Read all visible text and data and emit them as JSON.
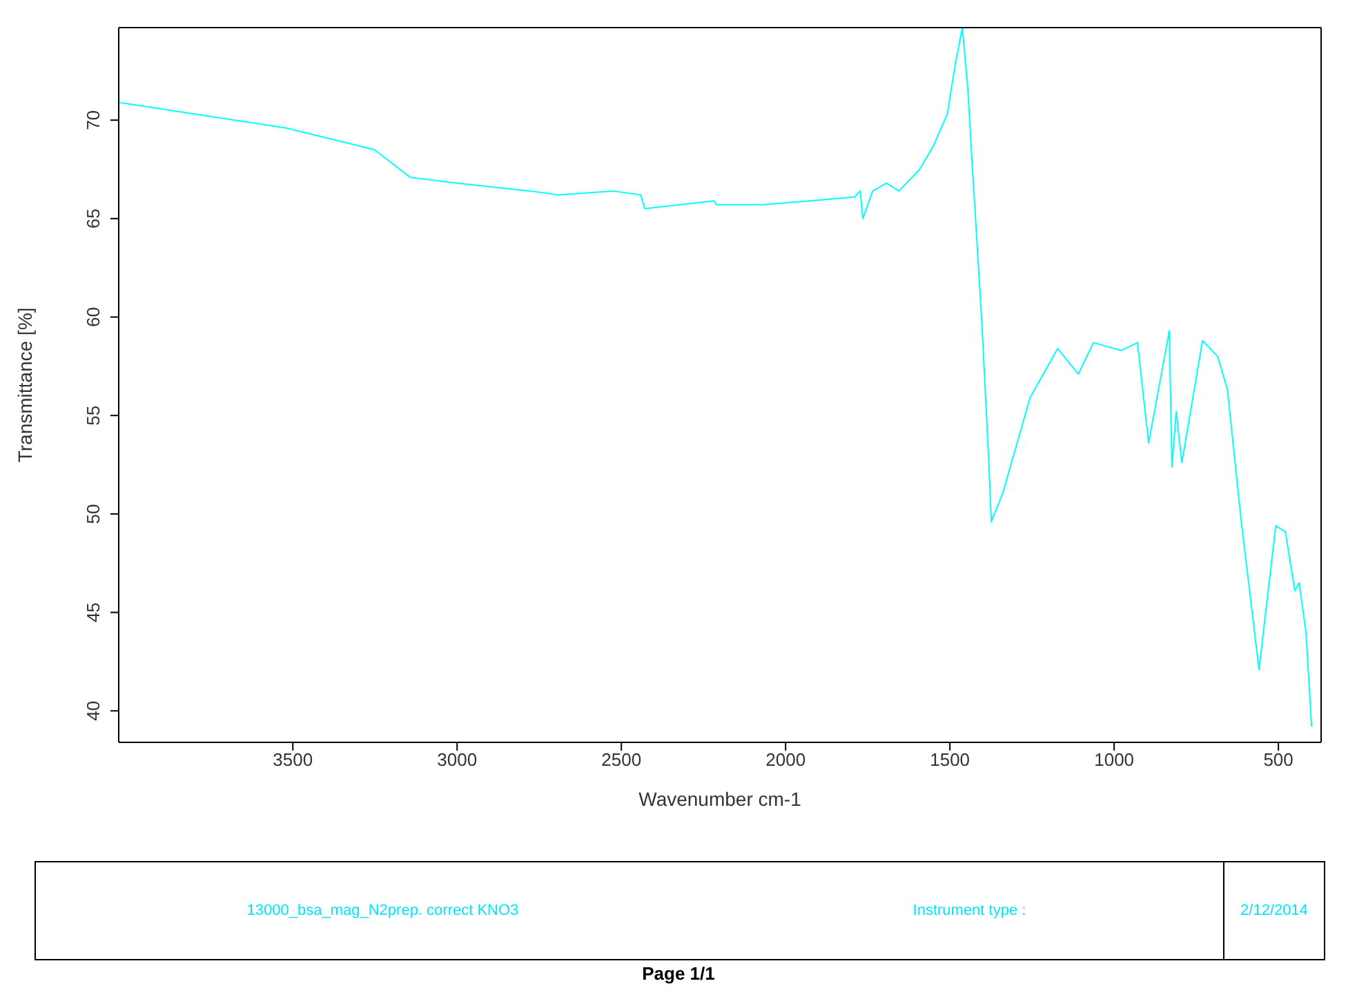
{
  "chart_data": {
    "type": "line",
    "xlabel": "Wavenumber cm-1",
    "ylabel": "Transmittance [%]",
    "xlim": [
      4030,
      370
    ],
    "xticks": [
      3500,
      3000,
      2500,
      2000,
      1500,
      1000,
      500
    ],
    "ylim": [
      38.4,
      74.7
    ],
    "yticks": [
      40,
      45,
      50,
      55,
      60,
      65,
      70
    ],
    "marker": "none",
    "line_style": "solid",
    "series": [
      {
        "color": "#00ffff",
        "x": [
          4029,
          3521,
          3252,
          3143,
          3000,
          2777,
          2693,
          2525,
          2441,
          2429,
          2218,
          2210,
          2071,
          1929,
          1790,
          1773,
          1765,
          1735,
          1693,
          1655,
          1592,
          1550,
          1508,
          1483,
          1462,
          1445,
          1433,
          1403,
          1382,
          1374,
          1340,
          1256,
          1172,
          1109,
          1063,
          979,
          929,
          895,
          832,
          824,
          811,
          794,
          731,
          685,
          655,
          613,
          559,
          508,
          479,
          450,
          437,
          416,
          399
        ],
        "values": [
          70.9,
          69.6,
          68.5,
          67.1,
          66.8,
          66.4,
          66.2,
          66.4,
          66.2,
          65.5,
          65.9,
          65.7,
          65.7,
          65.9,
          66.1,
          66.4,
          65.0,
          66.4,
          66.8,
          66.4,
          67.5,
          68.7,
          70.3,
          72.9,
          74.7,
          71.5,
          68.0,
          59.8,
          52.8,
          49.6,
          51.0,
          55.9,
          58.4,
          57.1,
          58.7,
          58.3,
          58.7,
          53.6,
          59.3,
          52.4,
          55.2,
          52.6,
          58.8,
          58.0,
          56.3,
          49.6,
          42.1,
          49.4,
          49.1,
          46.1,
          46.5,
          44.0,
          39.2
        ]
      }
    ],
    "annotations": [
      "13000_bsa_mag_N2prep. correct KNO3",
      "Instrument type :",
      "2/12/2014",
      "Page 1/1"
    ]
  }
}
